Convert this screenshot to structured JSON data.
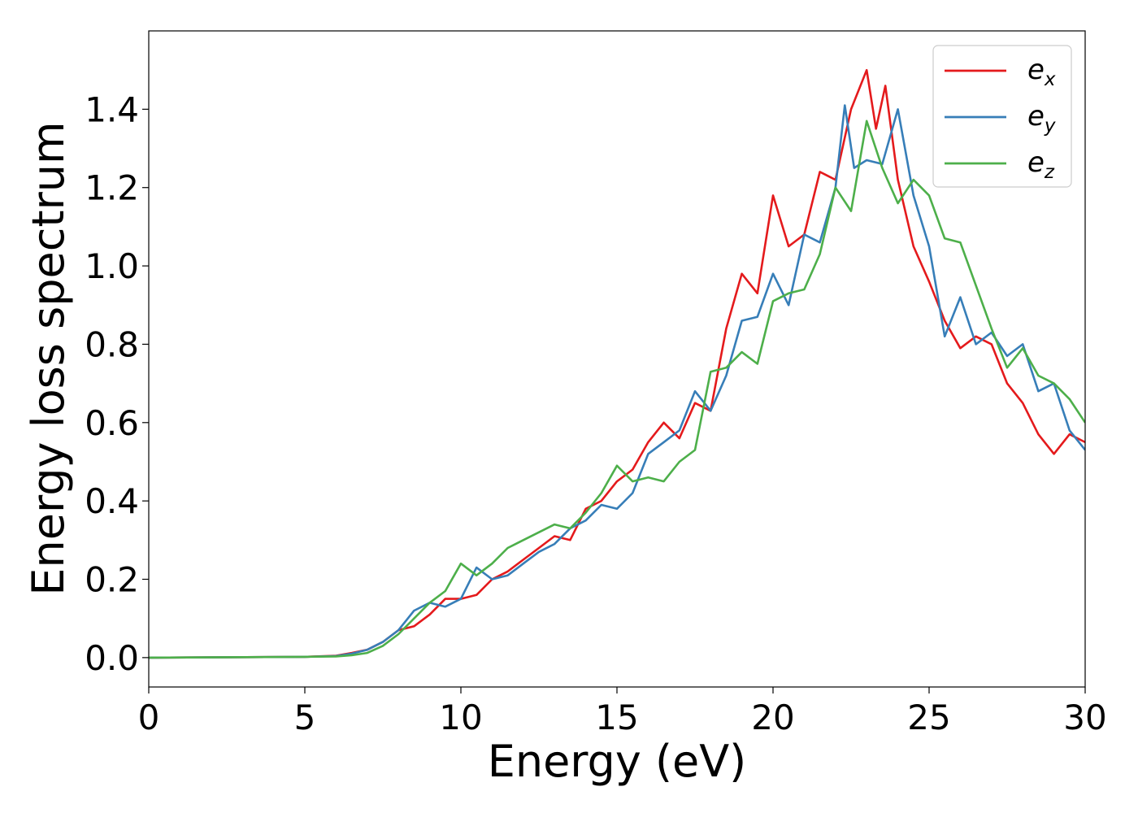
{
  "chart_data": {
    "type": "line",
    "xlabel": "Energy (eV)",
    "ylabel": "Energy loss spectrum",
    "xlim": [
      0,
      30
    ],
    "ylim": [
      -0.075,
      1.6
    ],
    "xticks": [
      0,
      5,
      10,
      15,
      20,
      25,
      30
    ],
    "xtick_labels": [
      "0",
      "5",
      "10",
      "15",
      "20",
      "25",
      "30"
    ],
    "yticks": [
      0.0,
      0.2,
      0.4,
      0.6,
      0.8,
      1.0,
      1.2,
      1.4
    ],
    "ytick_labels": [
      "0.0",
      "0.2",
      "0.4",
      "0.6",
      "0.8",
      "1.0",
      "1.2",
      "1.4"
    ],
    "grid": false,
    "legend_position": "top-right",
    "series": [
      {
        "name_base": "e",
        "name_sub": "x",
        "color": "#e41a1c",
        "x": [
          0,
          5,
          6,
          6.5,
          7,
          7.5,
          8,
          8.5,
          9,
          9.5,
          10,
          10.5,
          11,
          11.5,
          12,
          12.5,
          13,
          13.5,
          14,
          14.5,
          15,
          15.5,
          16,
          16.5,
          17,
          17.5,
          18,
          18.5,
          19,
          19.5,
          20,
          20.5,
          21,
          21.5,
          22,
          22.5,
          23,
          23.3,
          23.6,
          24,
          24.5,
          25,
          25.5,
          26,
          26.5,
          27,
          27.5,
          28,
          28.5,
          29,
          29.5,
          30
        ],
        "y": [
          0,
          0.002,
          0.005,
          0.012,
          0.02,
          0.04,
          0.07,
          0.08,
          0.11,
          0.15,
          0.15,
          0.16,
          0.2,
          0.22,
          0.25,
          0.28,
          0.31,
          0.3,
          0.38,
          0.4,
          0.45,
          0.48,
          0.55,
          0.6,
          0.56,
          0.65,
          0.63,
          0.84,
          0.98,
          0.93,
          1.18,
          1.05,
          1.08,
          1.24,
          1.22,
          1.4,
          1.5,
          1.35,
          1.46,
          1.22,
          1.05,
          0.96,
          0.86,
          0.79,
          0.82,
          0.8,
          0.7,
          0.65,
          0.57,
          0.52,
          0.57,
          0.55
        ]
      },
      {
        "name_base": "e",
        "name_sub": "y",
        "color": "#377eb8",
        "x": [
          0,
          5,
          6,
          6.5,
          7,
          7.5,
          8,
          8.5,
          9,
          9.5,
          10,
          10.5,
          11,
          11.5,
          12,
          12.5,
          13,
          13.5,
          14,
          14.5,
          15,
          15.5,
          16,
          16.5,
          17,
          17.5,
          18,
          18.5,
          19,
          19.5,
          20,
          20.5,
          21,
          21.5,
          22,
          22.3,
          22.6,
          23,
          23.5,
          24,
          24.5,
          25,
          25.5,
          26,
          26.5,
          27,
          27.5,
          28,
          28.5,
          29,
          29.5,
          30
        ],
        "y": [
          0,
          0.002,
          0.004,
          0.01,
          0.02,
          0.04,
          0.07,
          0.12,
          0.14,
          0.13,
          0.15,
          0.23,
          0.2,
          0.21,
          0.24,
          0.27,
          0.29,
          0.33,
          0.35,
          0.39,
          0.38,
          0.42,
          0.52,
          0.55,
          0.58,
          0.68,
          0.63,
          0.72,
          0.86,
          0.87,
          0.98,
          0.9,
          1.08,
          1.06,
          1.2,
          1.41,
          1.25,
          1.27,
          1.26,
          1.4,
          1.18,
          1.05,
          0.82,
          0.92,
          0.8,
          0.83,
          0.77,
          0.8,
          0.68,
          0.7,
          0.58,
          0.53
        ]
      },
      {
        "name_base": "e",
        "name_sub": "z",
        "color": "#4daf4a",
        "x": [
          0,
          5,
          6,
          6.5,
          7,
          7.5,
          8,
          8.5,
          9,
          9.5,
          10,
          10.5,
          11,
          11.5,
          12,
          12.5,
          13,
          13.5,
          14,
          14.5,
          15,
          15.5,
          16,
          16.5,
          17,
          17.5,
          18,
          18.5,
          19,
          19.5,
          20,
          20.5,
          21,
          21.5,
          22,
          22.5,
          23,
          23.5,
          24,
          24.5,
          25,
          25.5,
          26,
          26.5,
          27,
          27.5,
          28,
          28.5,
          29,
          29.5,
          30
        ],
        "y": [
          0,
          0.002,
          0.003,
          0.006,
          0.012,
          0.03,
          0.06,
          0.1,
          0.14,
          0.17,
          0.24,
          0.21,
          0.24,
          0.28,
          0.3,
          0.32,
          0.34,
          0.33,
          0.37,
          0.42,
          0.49,
          0.45,
          0.46,
          0.45,
          0.5,
          0.53,
          0.73,
          0.74,
          0.78,
          0.75,
          0.91,
          0.93,
          0.94,
          1.03,
          1.2,
          1.14,
          1.37,
          1.25,
          1.16,
          1.22,
          1.18,
          1.07,
          1.06,
          0.95,
          0.84,
          0.74,
          0.79,
          0.72,
          0.7,
          0.66,
          0.6
        ]
      }
    ]
  }
}
